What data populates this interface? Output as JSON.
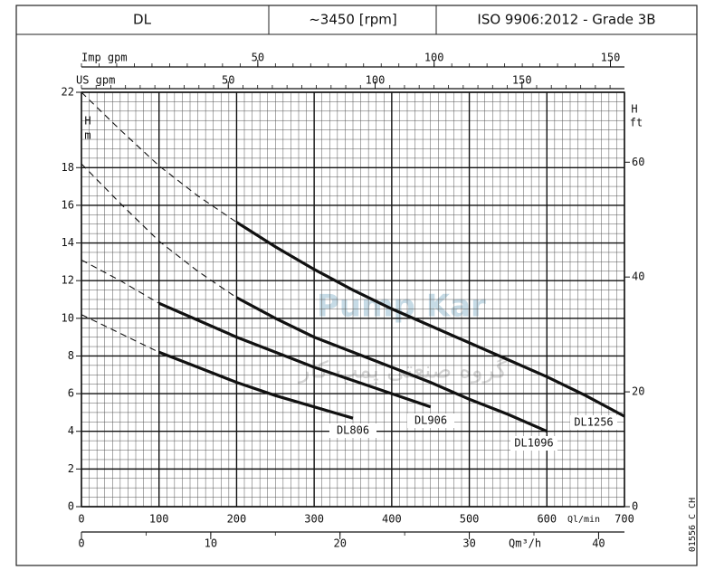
{
  "header": [
    "DL",
    "~3450 [rpm]",
    "ISO 9906:2012 - Grade 3B"
  ],
  "side_code": "01556_C_CH",
  "watermark": [
    "Pump Kar",
    "گروه صنعتی پمپ کار"
  ],
  "chart_data": {
    "type": "line",
    "xlabel": "Ql/min",
    "xlim": [
      0,
      700
    ],
    "xticks": [
      0,
      100,
      200,
      300,
      400,
      500,
      600,
      700
    ],
    "ylabel": [
      "H",
      "m"
    ],
    "ylim": [
      0,
      22
    ],
    "yticks": [
      0,
      2,
      4,
      6,
      8,
      10,
      12,
      14,
      16,
      18,
      22
    ],
    "y2label": [
      "H",
      "ft"
    ],
    "y2lim": [
      0,
      72.18
    ],
    "y2ticks": [
      0,
      20,
      40,
      60
    ],
    "x_m3h": {
      "label": "Qm³/h",
      "lim": [
        0,
        42
      ],
      "ticks": [
        0,
        10,
        20,
        30,
        40
      ]
    },
    "x_usgpm": {
      "label": "US gpm",
      "lim": [
        0,
        184.9
      ],
      "ticks": [
        50,
        100,
        150
      ]
    },
    "x_impgpm": {
      "label": "Imp gpm",
      "lim": [
        0,
        153.97
      ],
      "ticks": [
        50,
        100,
        150
      ]
    },
    "grid": true,
    "minor_grid_step": {
      "x": 10,
      "y": 0.5
    },
    "series": [
      {
        "name": "DL806",
        "color": "#111111",
        "segments": [
          {
            "style": "dashed",
            "x": [
              0,
              50,
              100
            ],
            "values": [
              10.2,
              9.2,
              8.2
            ]
          },
          {
            "style": "solid",
            "x": [
              100,
              150,
              200,
              250,
              300,
              350
            ],
            "values": [
              8.2,
              7.4,
              6.6,
              5.9,
              5.3,
              4.7
            ]
          }
        ]
      },
      {
        "name": "DL906",
        "color": "#111111",
        "segments": [
          {
            "style": "dashed",
            "x": [
              0,
              50,
              100
            ],
            "values": [
              13.1,
              12.0,
              10.8
            ]
          },
          {
            "style": "solid",
            "x": [
              100,
              150,
              200,
              250,
              300,
              350,
              400,
              450
            ],
            "values": [
              10.8,
              9.9,
              9.0,
              8.2,
              7.4,
              6.7,
              6.0,
              5.3
            ]
          }
        ]
      },
      {
        "name": "DL1096",
        "color": "#111111",
        "segments": [
          {
            "style": "dashed",
            "x": [
              0,
              50,
              100,
              150,
              200
            ],
            "values": [
              18.2,
              16.1,
              14.1,
              12.5,
              11.1
            ]
          },
          {
            "style": "solid",
            "x": [
              200,
              250,
              300,
              350,
              400,
              450,
              500,
              550,
              600
            ],
            "values": [
              11.1,
              10.0,
              9.0,
              8.2,
              7.4,
              6.6,
              5.7,
              4.9,
              4.0
            ]
          }
        ]
      },
      {
        "name": "DL1256",
        "color": "#111111",
        "segments": [
          {
            "style": "dashed",
            "x": [
              0,
              50,
              100,
              150,
              200
            ],
            "values": [
              22.0,
              20.0,
              18.1,
              16.5,
              15.1
            ]
          },
          {
            "style": "solid",
            "x": [
              200,
              250,
              300,
              350,
              400,
              450,
              500,
              550,
              600,
              650,
              700
            ],
            "values": [
              15.1,
              13.8,
              12.6,
              11.5,
              10.5,
              9.6,
              8.7,
              7.8,
              6.9,
              5.9,
              4.8
            ]
          }
        ]
      }
    ]
  }
}
